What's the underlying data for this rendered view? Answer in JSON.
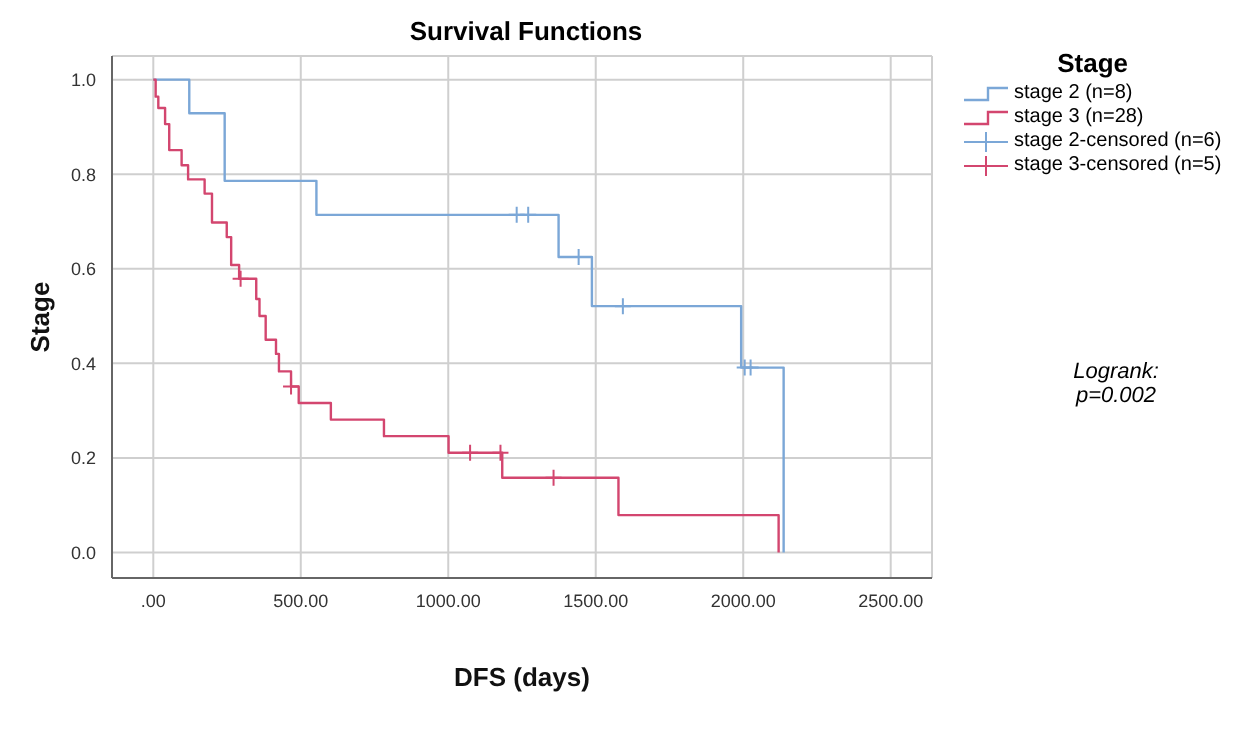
{
  "chart_data": {
    "type": "step",
    "title": "Survival Functions",
    "xlabel": "DFS (days)",
    "ylabel": "Stage",
    "legend_title": "Stage",
    "legend": "right",
    "grid": true,
    "xlim": [
      -140,
      2640
    ],
    "ylim": [
      -0.054,
      1.05
    ],
    "xticks": [
      {
        "value": 0,
        "label": ".00"
      },
      {
        "value": 500,
        "label": "500.00"
      },
      {
        "value": 1000,
        "label": "1000.00"
      },
      {
        "value": 1500,
        "label": "1500.00"
      },
      {
        "value": 2000,
        "label": "2000.00"
      },
      {
        "value": 2500,
        "label": "2500.00"
      }
    ],
    "yticks": [
      {
        "value": 0,
        "label": "0.0"
      },
      0.2,
      0.4,
      0.6,
      0.8,
      {
        "value": 1,
        "label": "1.0"
      }
    ],
    "annotations": [
      "Logrank:\np=0.002"
    ],
    "series": [
      {
        "name": "stage 2 (n=8)",
        "marker": "none",
        "color": "#7ba7d7",
        "x": [
          0,
          122,
          242,
          553,
          1374,
          1487,
          1993,
          2137
        ],
        "values": [
          1,
          0.929,
          0.786,
          0.714,
          0.625,
          0.521,
          0.391,
          0
        ],
        "line_style": "solid"
      },
      {
        "name": "stage 3 (n=28)",
        "marker": "none",
        "color": "#d3466f",
        "x": [
          0,
          8,
          17,
          40,
          54,
          96,
          118,
          174,
          199,
          249,
          264,
          291,
          349,
          360,
          381,
          416,
          426,
          467,
          493,
          602,
          782,
          1001,
          1183,
          1577,
          2120
        ],
        "values": [
          1,
          0.964,
          0.94,
          0.906,
          0.851,
          0.819,
          0.789,
          0.759,
          0.698,
          0.667,
          0.608,
          0.579,
          0.536,
          0.5,
          0.45,
          0.42,
          0.383,
          0.351,
          0.316,
          0.281,
          0.246,
          0.211,
          0.158,
          0.079,
          0
        ],
        "line_style": "solid"
      },
      {
        "name": "stage 2-censored (n=6)",
        "type": "scatter",
        "marker": "cross",
        "color": "#7ba7d7",
        "x": [
          1232,
          1271,
          1442,
          1592,
          2005,
          2025
        ],
        "values": [
          0.714,
          0.714,
          0.625,
          0.521,
          0.391,
          0.391
        ]
      },
      {
        "name": "stage 3-censored (n=5)",
        "type": "scatter",
        "marker": "cross",
        "color": "#d3466f",
        "x": [
          296,
          467,
          1074,
          1177,
          1357
        ],
        "values": [
          0.579,
          0.351,
          0.211,
          0.211,
          0.158
        ]
      }
    ]
  }
}
